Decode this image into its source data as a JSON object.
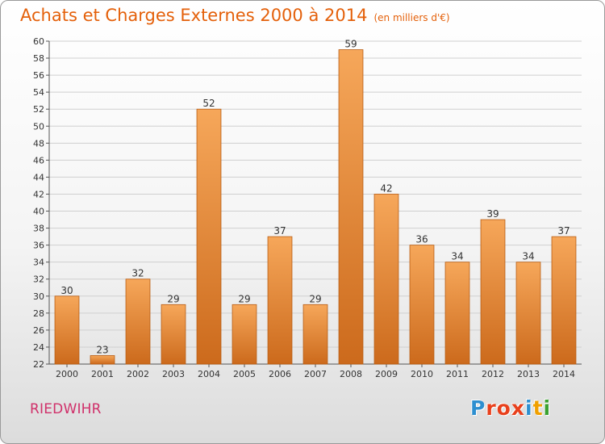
{
  "header": {
    "title": "Achats et Charges Externes 2000 à 2014",
    "subtitle": "(en milliers d'€)"
  },
  "footer": {
    "commune": "RIEDWIHR",
    "logo": {
      "text": "Proxiti",
      "letter_colors": [
        "#2d8fd0",
        "#e8401c",
        "#e8401c",
        "#e8401c",
        "#2d8fd0",
        "#f0a000",
        "#3aa030"
      ]
    }
  },
  "colors": {
    "title": "#e4600a",
    "commune": "#d0306a",
    "bar_top": "#f6a75a",
    "bar_bottom": "#cc6a1c",
    "bar_border": "#b85d14",
    "grid": "#cfcfcf",
    "axis": "#555555"
  },
  "chart_data": {
    "type": "bar",
    "categories": [
      "2000",
      "2001",
      "2002",
      "2003",
      "2004",
      "2005",
      "2006",
      "2007",
      "2008",
      "2009",
      "2010",
      "2011",
      "2012",
      "2013",
      "2014"
    ],
    "values": [
      30,
      23,
      32,
      29,
      52,
      29,
      37,
      29,
      59,
      42,
      36,
      34,
      39,
      34,
      37
    ],
    "ylim": [
      22,
      60
    ],
    "yticks": [
      22,
      24,
      26,
      28,
      30,
      32,
      34,
      36,
      38,
      40,
      42,
      44,
      46,
      48,
      50,
      52,
      54,
      56,
      58,
      60
    ],
    "grid": true,
    "xlabel": "",
    "ylabel": ""
  }
}
